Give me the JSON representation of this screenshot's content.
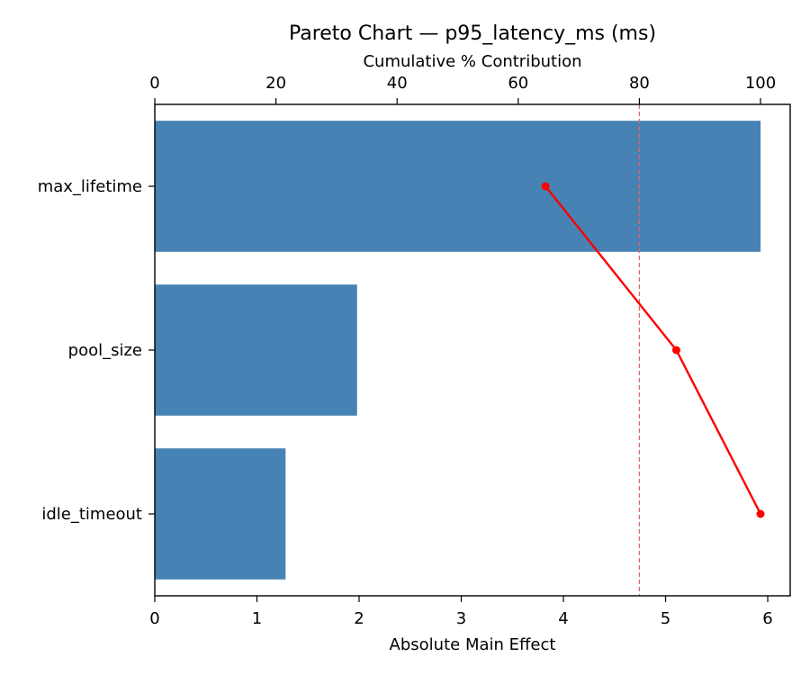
{
  "chart_data": {
    "type": "bar",
    "orientation": "horizontal",
    "title": "Pareto Chart — p95_latency_ms (ms)",
    "xlabel": "Absolute Main Effect",
    "x2label": "Cumulative % Contribution",
    "categories": [
      "max_lifetime",
      "pool_size",
      "idle_timeout"
    ],
    "values": [
      5.93,
      1.98,
      1.28
    ],
    "cumulative_percent": [
      64.5,
      86.1,
      100.0
    ],
    "threshold_percent": 80,
    "xlim": [
      0,
      6.22
    ],
    "xticks": [
      0,
      1,
      2,
      3,
      4,
      5,
      6
    ],
    "x2lim": [
      0,
      104.9
    ],
    "x2ticks": [
      0,
      20,
      40,
      60,
      80,
      100
    ],
    "grid": false,
    "legend": "none"
  },
  "colors": {
    "bar": "#4682b4",
    "cumulative_line": "#ff0000",
    "threshold_line": "#e06666",
    "axes": "#000000"
  }
}
